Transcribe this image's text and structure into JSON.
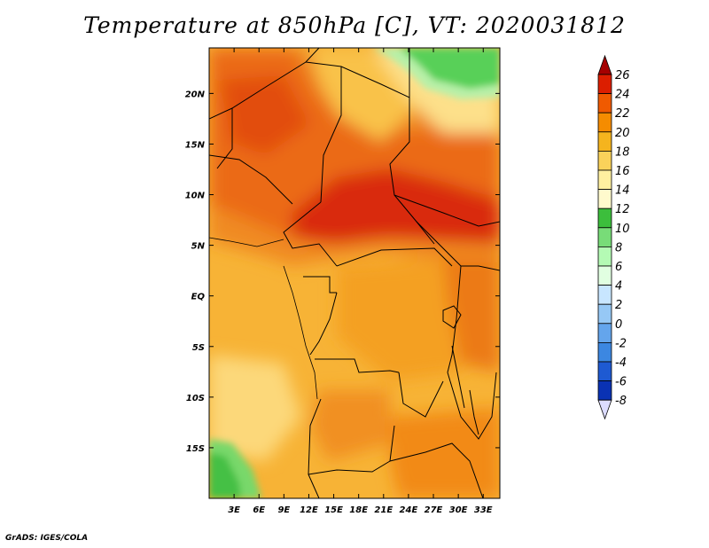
{
  "title": "Temperature at 850hPa [C], VT: 2020031812",
  "credit": "GrADS: IGES/COLA",
  "map": {
    "type": "heatmap",
    "variable": "Temperature at 850hPa",
    "units": "C",
    "valid_time": "2020031812",
    "lon_range": [
      0,
      35
    ],
    "lat_range": [
      -20,
      24.5
    ],
    "x_ticks": [
      "3E",
      "6E",
      "9E",
      "12E",
      "15E",
      "18E",
      "21E",
      "24E",
      "27E",
      "30E",
      "33E"
    ],
    "x_tick_values": [
      3,
      6,
      9,
      12,
      15,
      18,
      21,
      24,
      27,
      30,
      33
    ],
    "y_ticks": [
      "20N",
      "15N",
      "10N",
      "5N",
      "EQ",
      "5S",
      "10S",
      "15S"
    ],
    "y_tick_values": [
      20,
      15,
      10,
      5,
      0,
      -5,
      -10,
      -15
    ]
  },
  "colorbar": {
    "levels": [
      "26",
      "24",
      "22",
      "20",
      "18",
      "16",
      "14",
      "12",
      "10",
      "8",
      "6",
      "4",
      "2",
      "0",
      "-2",
      "-4",
      "-6",
      "-8"
    ],
    "colors": [
      "#a50000",
      "#dc1e00",
      "#f05a00",
      "#f58c00",
      "#f5b41e",
      "#fad25a",
      "#fff0a0",
      "#fffacd",
      "#3cbe3c",
      "#78dc78",
      "#b4fab4",
      "#e1ffe1",
      "#c8e6ff",
      "#96c8f5",
      "#64a5ec",
      "#3c87e1",
      "#1e5ad2",
      "#0a32b4",
      "#00147d"
    ]
  }
}
